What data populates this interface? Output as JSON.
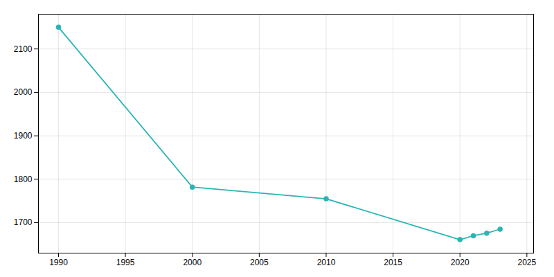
{
  "chart_data": {
    "type": "line",
    "x": [
      1990,
      2000,
      2010,
      2020,
      2021,
      2022,
      2023
    ],
    "values": [
      2150,
      1782,
      1755,
      1661,
      1670,
      1676,
      1685
    ],
    "color": "#2ab5b5",
    "marker": "circle",
    "xlim": [
      1988.5,
      2025.5
    ],
    "ylim": [
      1630,
      2180
    ],
    "xticks": [
      1990,
      1995,
      2000,
      2005,
      2010,
      2015,
      2020,
      2025
    ],
    "yticks": [
      1700,
      1800,
      1900,
      2000,
      2100
    ],
    "grid": true
  }
}
